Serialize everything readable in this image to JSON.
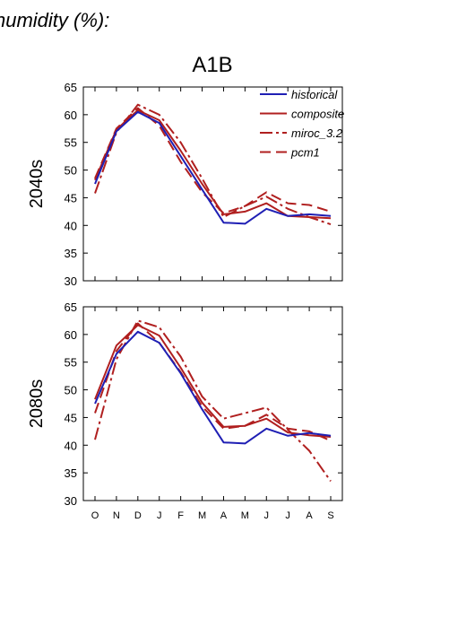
{
  "header_text": "humidity (%):",
  "chart_data": {
    "type": "line",
    "title": "A1B",
    "categories": [
      "O",
      "N",
      "D",
      "J",
      "F",
      "M",
      "A",
      "M",
      "J",
      "J",
      "A",
      "S"
    ],
    "ylim": [
      30,
      65
    ],
    "yticks": [
      30,
      35,
      40,
      45,
      50,
      55,
      60,
      65
    ],
    "legend_position": "top-right",
    "grid": false,
    "legend": [
      {
        "name": "historical",
        "color": "#1f1fb4",
        "style": "solid"
      },
      {
        "name": "composite",
        "color": "#b01f1f",
        "style": "solid"
      },
      {
        "name": "miroc_3.2",
        "color": "#b01f1f",
        "style": "dashdot"
      },
      {
        "name": "pcm1",
        "color": "#b01f1f",
        "style": "dashed"
      }
    ],
    "panels": [
      {
        "label": "2040s",
        "series": [
          {
            "name": "historical",
            "values": [
              47.5,
              57.0,
              60.5,
              58.5,
              52.5,
              46.5,
              40.5,
              40.3,
              43.0,
              41.7,
              42.0,
              41.7
            ]
          },
          {
            "name": "composite",
            "values": [
              48.2,
              57.3,
              60.8,
              59.0,
              53.5,
              47.5,
              42.0,
              42.5,
              44.0,
              41.7,
              41.5,
              41.3
            ]
          },
          {
            "name": "miroc_3.2",
            "values": [
              45.8,
              56.8,
              61.8,
              60.0,
              55.0,
              48.5,
              41.5,
              43.5,
              45.2,
              43.0,
              41.5,
              40.2
            ]
          },
          {
            "name": "pcm1",
            "values": [
              48.5,
              57.5,
              61.2,
              58.0,
              51.5,
              46.0,
              42.2,
              43.5,
              46.0,
              44.0,
              43.7,
              42.5
            ]
          }
        ]
      },
      {
        "label": "2080s",
        "series": [
          {
            "name": "historical",
            "values": [
              47.5,
              56.5,
              60.5,
              58.5,
              53.0,
              46.5,
              40.5,
              40.3,
              43.0,
              41.7,
              42.2,
              41.7
            ]
          },
          {
            "name": "composite",
            "values": [
              48.3,
              58.0,
              61.7,
              59.8,
              54.0,
              47.7,
              43.3,
              43.5,
              44.8,
              42.3,
              41.8,
              41.5
            ]
          },
          {
            "name": "miroc_3.2",
            "values": [
              41.0,
              55.5,
              62.5,
              61.3,
              56.0,
              48.8,
              44.8,
              45.8,
              46.8,
              42.8,
              39.0,
              33.5
            ]
          },
          {
            "name": "pcm1",
            "values": [
              45.8,
              57.0,
              62.0,
              58.5,
              53.2,
              47.0,
              43.0,
              43.5,
              45.5,
              43.0,
              42.5,
              40.8
            ]
          }
        ]
      }
    ]
  }
}
